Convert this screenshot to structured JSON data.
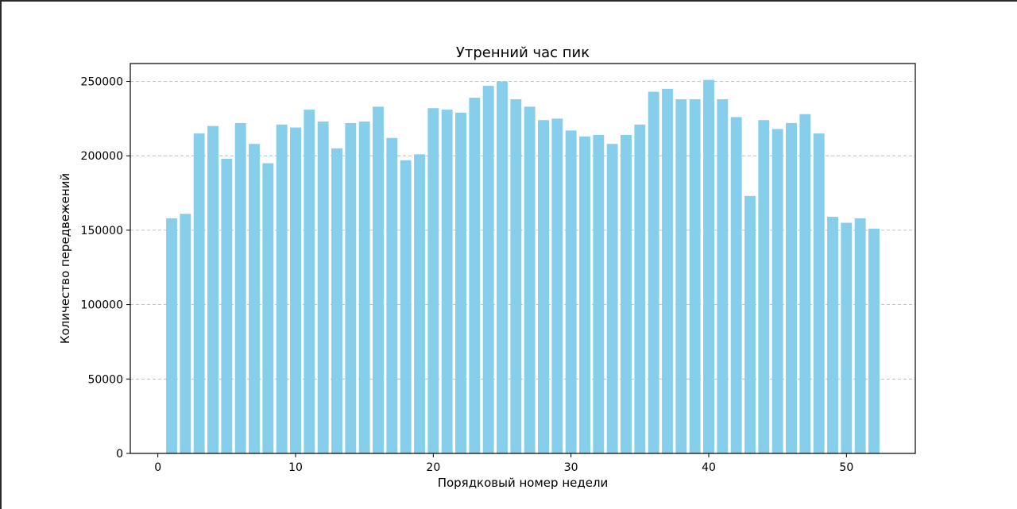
{
  "chart_data": {
    "type": "bar",
    "title": "Утренний час пик",
    "xlabel": "Порядковый номер недели",
    "ylabel": "Количество передвежений",
    "xlim": [
      -2,
      55
    ],
    "ylim": [
      0,
      262000
    ],
    "xticks": [
      0,
      10,
      20,
      30,
      40,
      50
    ],
    "yticks": [
      0,
      50000,
      100000,
      150000,
      200000,
      250000
    ],
    "grid": "y-dashed",
    "bar_color": "#87CEEB",
    "x": [
      1,
      2,
      3,
      4,
      5,
      6,
      7,
      8,
      9,
      10,
      11,
      12,
      13,
      14,
      15,
      16,
      17,
      18,
      19,
      20,
      21,
      22,
      23,
      24,
      25,
      26,
      27,
      28,
      29,
      30,
      31,
      32,
      33,
      34,
      35,
      36,
      37,
      38,
      39,
      40,
      41,
      42,
      43,
      44,
      45,
      46,
      47,
      48,
      49,
      50,
      51,
      52
    ],
    "values": [
      158000,
      161000,
      215000,
      220000,
      198000,
      222000,
      208000,
      195000,
      221000,
      219000,
      231000,
      223000,
      205000,
      222000,
      223000,
      233000,
      212000,
      197000,
      201000,
      232000,
      231000,
      229000,
      239000,
      247000,
      250000,
      238000,
      233000,
      224000,
      225000,
      217000,
      213000,
      214000,
      208000,
      214000,
      221000,
      243000,
      245000,
      238000,
      238000,
      251000,
      238000,
      226000,
      173000,
      224000,
      218000,
      222000,
      228000,
      215000,
      159000,
      155000,
      158000,
      151000
    ]
  }
}
